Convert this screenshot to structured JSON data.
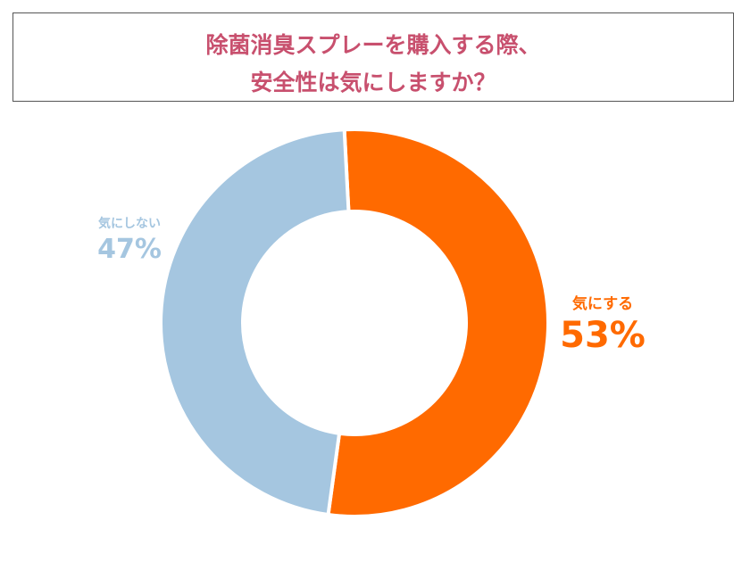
{
  "title": {
    "line1": "除菌消臭スプレーを購入する際、",
    "line2": "安全性は気にしますか？"
  },
  "chart_data": {
    "type": "donut",
    "title": "除菌消臭スプレーを購入する際、安全性は気にしますか？",
    "series": [
      {
        "name": "気にする",
        "value": 53,
        "label": "53%",
        "color": "#ff6a00"
      },
      {
        "name": "気にしない",
        "value": 47,
        "label": "47%",
        "color": "#a5c6e0"
      }
    ]
  }
}
